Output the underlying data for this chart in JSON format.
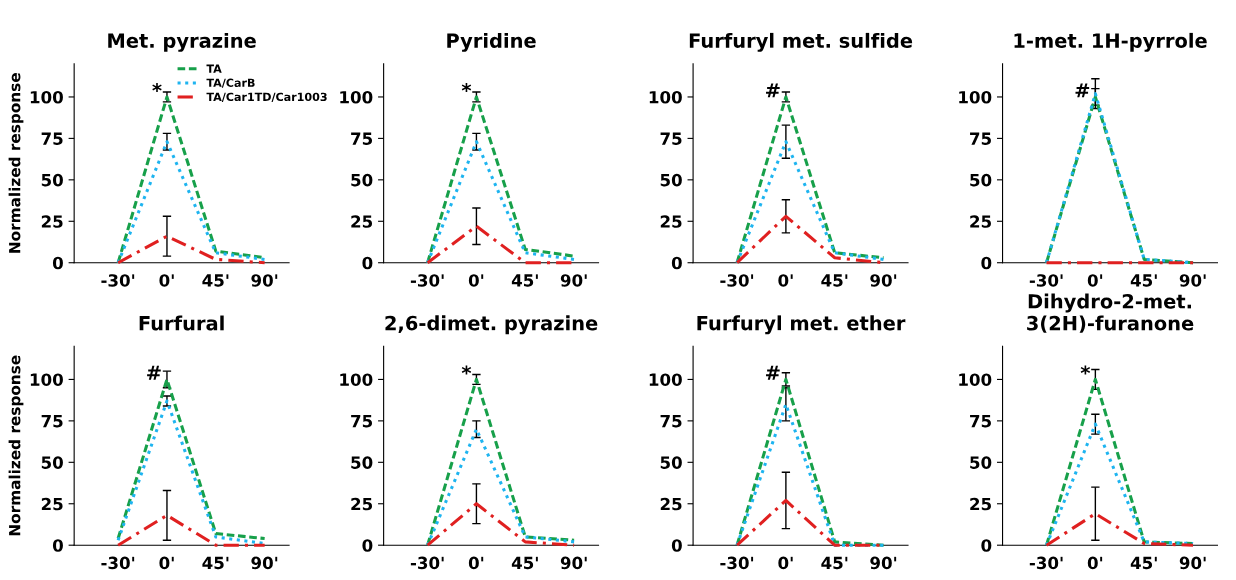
{
  "chart_data": [
    {
      "type": "line",
      "title": "Met. pyrazine",
      "ylabel": "Normalized response",
      "categories": [
        "-30'",
        "0'",
        "45'",
        "90'"
      ],
      "ylim": [
        0,
        120
      ],
      "yticks": [
        0,
        25,
        50,
        75,
        100
      ],
      "legend": "top right",
      "grid": false,
      "series": [
        {
          "name": "TA",
          "color": "#17a04a",
          "line_style": "dashed",
          "values": [
            0,
            100,
            7,
            3
          ],
          "errors": [
            null,
            3,
            null,
            null
          ]
        },
        {
          "name": "TA/CarB",
          "color": "#1eb4f0",
          "line_style": "dotted",
          "values": [
            0,
            73,
            6,
            2
          ],
          "errors": [
            null,
            5,
            null,
            null
          ]
        },
        {
          "name": "TA/Car1TD/Car1003",
          "color": "#e02020",
          "line_style": "dashdot",
          "values": [
            0,
            16,
            2,
            0
          ],
          "errors": [
            null,
            12,
            null,
            null
          ]
        }
      ],
      "annotations": [
        {
          "text": "*",
          "x": "0'",
          "y": 103
        }
      ]
    },
    {
      "type": "line",
      "title": "Pyridine",
      "categories": [
        "-30'",
        "0'",
        "45'",
        "90'"
      ],
      "ylim": [
        0,
        120
      ],
      "yticks": [
        0,
        25,
        50,
        75,
        100
      ],
      "grid": false,
      "series": [
        {
          "color": "#17a04a",
          "line_style": "dashed",
          "values": [
            0,
            100,
            8,
            4
          ],
          "errors": [
            null,
            3,
            null,
            null
          ]
        },
        {
          "color": "#1eb4f0",
          "line_style": "dotted",
          "values": [
            0,
            73,
            6,
            2
          ],
          "errors": [
            null,
            5,
            null,
            null
          ]
        },
        {
          "color": "#e02020",
          "line_style": "dashdot",
          "values": [
            0,
            22,
            0,
            0
          ],
          "errors": [
            null,
            11,
            null,
            null
          ]
        }
      ],
      "annotations": [
        {
          "text": "*",
          "x": "0'",
          "y": 103
        }
      ]
    },
    {
      "type": "line",
      "title": "Furfuryl met. sulfide",
      "categories": [
        "-30'",
        "0'",
        "45'",
        "90'"
      ],
      "ylim": [
        0,
        120
      ],
      "yticks": [
        0,
        25,
        50,
        75,
        100
      ],
      "grid": false,
      "series": [
        {
          "color": "#17a04a",
          "line_style": "dashed",
          "values": [
            0,
            100,
            6,
            3
          ],
          "errors": [
            null,
            3,
            null,
            null
          ]
        },
        {
          "color": "#1eb4f0",
          "line_style": "dotted",
          "values": [
            0,
            73,
            6,
            2
          ],
          "errors": [
            null,
            10,
            null,
            null
          ]
        },
        {
          "color": "#e02020",
          "line_style": "dashdot",
          "values": [
            0,
            28,
            3,
            0
          ],
          "errors": [
            null,
            10,
            null,
            null
          ]
        }
      ],
      "annotations": [
        {
          "text": "#",
          "x": "0'",
          "y": 103
        }
      ]
    },
    {
      "type": "line",
      "title": "1-met. 1H-pyrrole",
      "categories": [
        "-30'",
        "0'",
        "45'",
        "90'"
      ],
      "ylim": [
        0,
        120
      ],
      "yticks": [
        0,
        25,
        50,
        75,
        100
      ],
      "grid": false,
      "series": [
        {
          "color": "#17a04a",
          "line_style": "dashed",
          "values": [
            0,
            100,
            2,
            0
          ],
          "errors": [
            null,
            5,
            null,
            null
          ]
        },
        {
          "color": "#1eb4f0",
          "line_style": "dotted",
          "values": [
            0,
            102,
            2,
            0
          ],
          "errors": [
            null,
            9,
            null,
            null
          ]
        },
        {
          "color": "#e02020",
          "line_style": "dashdot",
          "values": [
            0,
            0,
            0,
            0
          ]
        }
      ],
      "annotations": [
        {
          "text": "#",
          "x": "0'",
          "y": 103
        }
      ]
    },
    {
      "type": "line",
      "title": "Furfural",
      "ylabel": "Normalized response",
      "categories": [
        "-30'",
        "0'",
        "45'",
        "90'"
      ],
      "ylim": [
        0,
        120
      ],
      "yticks": [
        0,
        25,
        50,
        75,
        100
      ],
      "grid": false,
      "series": [
        {
          "color": "#17a04a",
          "line_style": "dashed",
          "values": [
            4,
            100,
            7,
            4
          ],
          "errors": [
            null,
            5,
            null,
            null
          ]
        },
        {
          "color": "#1eb4f0",
          "line_style": "dotted",
          "values": [
            3,
            87,
            5,
            1
          ],
          "errors": [
            null,
            3,
            null,
            null
          ]
        },
        {
          "color": "#e02020",
          "line_style": "dashdot",
          "values": [
            0,
            18,
            0,
            0
          ],
          "errors": [
            null,
            15,
            null,
            null
          ]
        }
      ],
      "annotations": [
        {
          "text": "#",
          "x": "0'",
          "y": 103
        }
      ]
    },
    {
      "type": "line",
      "title": "2,6-dimet. pyrazine",
      "categories": [
        "-30'",
        "0'",
        "45'",
        "90'"
      ],
      "ylim": [
        0,
        120
      ],
      "yticks": [
        0,
        25,
        50,
        75,
        100
      ],
      "grid": false,
      "series": [
        {
          "color": "#17a04a",
          "line_style": "dashed",
          "values": [
            0,
            100,
            5,
            3
          ],
          "errors": [
            null,
            3,
            null,
            null
          ]
        },
        {
          "color": "#1eb4f0",
          "line_style": "dotted",
          "values": [
            0,
            70,
            5,
            2
          ],
          "errors": [
            null,
            5,
            null,
            null
          ]
        },
        {
          "color": "#e02020",
          "line_style": "dashdot",
          "values": [
            0,
            25,
            2,
            0
          ],
          "errors": [
            null,
            12,
            null,
            null
          ]
        }
      ],
      "annotations": [
        {
          "text": "*",
          "x": "0'",
          "y": 103
        }
      ]
    },
    {
      "type": "line",
      "title": "Furfuryl met. ether",
      "categories": [
        "-30'",
        "0'",
        "45'",
        "90'"
      ],
      "ylim": [
        0,
        120
      ],
      "yticks": [
        0,
        25,
        50,
        75,
        100
      ],
      "grid": false,
      "series": [
        {
          "color": "#17a04a",
          "line_style": "dashed",
          "values": [
            0,
            100,
            2,
            0
          ],
          "errors": [
            null,
            4,
            null,
            null
          ]
        },
        {
          "color": "#1eb4f0",
          "line_style": "dotted",
          "values": [
            0,
            85,
            0,
            0
          ],
          "errors": [
            null,
            10,
            null,
            null
          ]
        },
        {
          "color": "#e02020",
          "line_style": "dashdot",
          "values": [
            0,
            27,
            0,
            0
          ],
          "errors": [
            null,
            17,
            null,
            null
          ]
        }
      ],
      "annotations": [
        {
          "text": "#",
          "x": "0'",
          "y": 103
        }
      ]
    },
    {
      "type": "line",
      "title": "Dihydro-2-met. 3(2H)-furanone",
      "categories": [
        "-30'",
        "0'",
        "45'",
        "90'"
      ],
      "ylim": [
        0,
        120
      ],
      "yticks": [
        0,
        25,
        50,
        75,
        100
      ],
      "grid": false,
      "series": [
        {
          "color": "#17a04a",
          "line_style": "dashed",
          "values": [
            0,
            100,
            2,
            1
          ],
          "errors": [
            null,
            6,
            null,
            null
          ]
        },
        {
          "color": "#1eb4f0",
          "line_style": "dotted",
          "values": [
            0,
            73,
            2,
            1
          ],
          "errors": [
            null,
            6,
            null,
            null
          ]
        },
        {
          "color": "#e02020",
          "line_style": "dashdot",
          "values": [
            0,
            19,
            1,
            0
          ],
          "errors": [
            null,
            16,
            null,
            null
          ]
        }
      ],
      "annotations": [
        {
          "text": "*",
          "x": "0'",
          "y": 103
        }
      ]
    }
  ]
}
